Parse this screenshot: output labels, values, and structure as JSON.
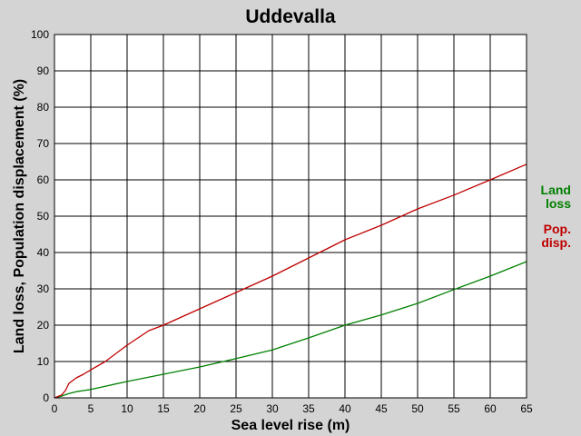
{
  "chart_data": {
    "type": "line",
    "title": "Uddevalla",
    "xlabel": "Sea level rise (m)",
    "ylabel": "Land loss, Population displacement (%)",
    "xlim": [
      0,
      65
    ],
    "ylim": [
      0,
      100
    ],
    "xticks": [
      0,
      5,
      10,
      15,
      20,
      25,
      30,
      35,
      40,
      45,
      50,
      55,
      60,
      65
    ],
    "yticks": [
      0,
      10,
      20,
      30,
      40,
      50,
      60,
      70,
      80,
      90,
      100
    ],
    "grid": true,
    "legend_position": "right",
    "series": [
      {
        "legend_lines": [
          "Land",
          "loss"
        ],
        "color": "#008000",
        "x": [
          0,
          1,
          2,
          3,
          4,
          5,
          7,
          10,
          15,
          20,
          25,
          30,
          35,
          40,
          45,
          50,
          55,
          60,
          65
        ],
        "y": [
          0,
          0.5,
          1.2,
          1.7,
          2.0,
          2.3,
          3.2,
          4.5,
          6.5,
          8.5,
          10.8,
          13.2,
          16.5,
          20.0,
          22.8,
          26.0,
          29.8,
          33.5,
          37.5
        ]
      },
      {
        "legend_lines": [
          "Pop.",
          "disp."
        ],
        "color": "#c00000",
        "x": [
          0,
          1,
          1.5,
          2,
          3,
          4,
          5,
          7,
          10,
          13,
          15,
          20,
          25,
          30,
          35,
          40,
          45,
          50,
          55,
          60,
          65
        ],
        "y": [
          0,
          0.8,
          2.0,
          4.0,
          5.5,
          6.5,
          7.7,
          10.0,
          14.5,
          18.5,
          20.0,
          24.5,
          29.0,
          33.5,
          38.5,
          43.5,
          47.5,
          52.0,
          55.8,
          60.0,
          64.3
        ]
      }
    ]
  }
}
